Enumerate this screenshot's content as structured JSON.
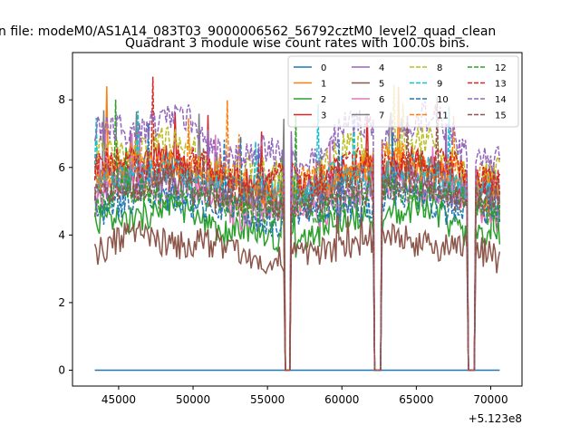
{
  "figure": {
    "suptitle": "n file: modeM0/AS1A14_083T03_9000006562_56792cztM0_level2_quad_clean",
    "title": "Quadrant 3 module wise count rates with 100.0s bins.",
    "offset_label": "+5.123e8"
  },
  "chart_data": {
    "type": "line",
    "title": "Quadrant 3 module wise count rates with 100.0s bins.",
    "xlabel": "",
    "ylabel": "",
    "x_offset": 512300000,
    "xlim": [
      41900,
      72100
    ],
    "ylim": [
      -0.47,
      9.4
    ],
    "xticks": [
      45000,
      50000,
      55000,
      60000,
      65000,
      70000
    ],
    "xtick_labels": [
      "45000",
      "50000",
      "55000",
      "60000",
      "65000",
      "70000"
    ],
    "yticks": [
      0,
      2,
      4,
      6,
      8
    ],
    "ytick_labels": [
      "0",
      "2",
      "4",
      "6",
      "8"
    ],
    "x_range": [
      43400,
      70600
    ],
    "gaps": [
      [
        56200,
        56500
      ],
      [
        62200,
        62600
      ],
      [
        68500,
        68900
      ]
    ],
    "legend_position": "top-right",
    "series": [
      {
        "name": "0",
        "color": "#1f77b4",
        "style": "solid",
        "base": 0.0,
        "amp": 0.0
      },
      {
        "name": "1",
        "color": "#ff7f0e",
        "style": "solid",
        "base": 5.5,
        "amp": 0.5
      },
      {
        "name": "2",
        "color": "#2ca02c",
        "style": "solid",
        "base": 4.3,
        "amp": 0.4
      },
      {
        "name": "3",
        "color": "#d62728",
        "style": "solid",
        "base": 5.7,
        "amp": 0.4
      },
      {
        "name": "4",
        "color": "#9467bd",
        "style": "solid",
        "base": 5.3,
        "amp": 0.3
      },
      {
        "name": "5",
        "color": "#8c564b",
        "style": "solid",
        "base": 3.6,
        "amp": 0.3
      },
      {
        "name": "6",
        "color": "#e377c2",
        "style": "solid",
        "base": 5.0,
        "amp": 0.4
      },
      {
        "name": "7",
        "color": "#7f7f7f",
        "style": "solid",
        "base": 5.6,
        "amp": 0.3
      },
      {
        "name": "8",
        "color": "#bcbd22",
        "style": "dashed",
        "base": 6.2,
        "amp": 0.5
      },
      {
        "name": "9",
        "color": "#17becf",
        "style": "dashed",
        "base": 5.6,
        "amp": 0.3
      },
      {
        "name": "10",
        "color": "#1f77b4",
        "style": "dashed",
        "base": 4.8,
        "amp": 0.3
      },
      {
        "name": "11",
        "color": "#ff7f0e",
        "style": "dashed",
        "base": 5.8,
        "amp": 0.4
      },
      {
        "name": "12",
        "color": "#2ca02c",
        "style": "dashed",
        "base": 5.0,
        "amp": 0.3
      },
      {
        "name": "13",
        "color": "#d62728",
        "style": "dashed",
        "base": 5.9,
        "amp": 0.3
      },
      {
        "name": "14",
        "color": "#9467bd",
        "style": "dashed",
        "base": 6.8,
        "amp": 0.6
      },
      {
        "name": "15",
        "color": "#8c564b",
        "style": "dashed",
        "base": 5.2,
        "amp": 0.3
      }
    ]
  }
}
